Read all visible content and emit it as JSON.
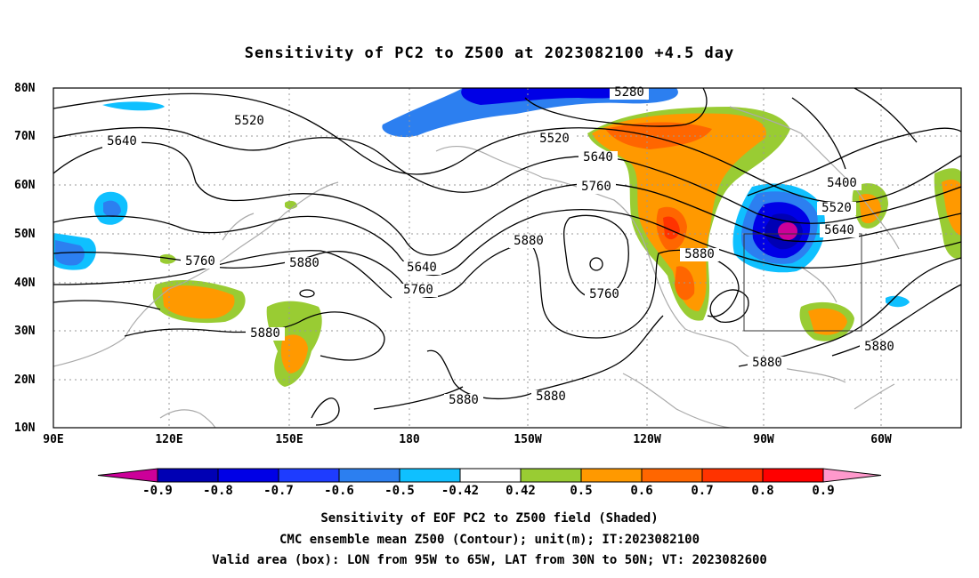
{
  "title": "Sensitivity of PC2 to Z500 at 2023082100 +4.5 day",
  "lat_labels": [
    "80N",
    "70N",
    "60N",
    "50N",
    "40N",
    "30N",
    "20N",
    "10N"
  ],
  "lon_labels": [
    "90E",
    "120E",
    "150E",
    "180",
    "150W",
    "120W",
    "90W",
    "60W"
  ],
  "colorbar": {
    "labels": [
      "-0.9",
      "-0.8",
      "-0.7",
      "-0.6",
      "-0.5",
      "-0.42",
      "0.42",
      "0.5",
      "0.6",
      "0.7",
      "0.8",
      "0.9"
    ],
    "colors": [
      "#cc0099",
      "#0000b4",
      "#0000e6",
      "#1e3cff",
      "#2c7ff0",
      "#0fc0ff",
      "#ffffff",
      "#99cc33",
      "#ff9900",
      "#ff6600",
      "#ff3300",
      "#ff0000",
      "#ff99cc"
    ]
  },
  "contour_labels": [
    "5280",
    "5520",
    "5520",
    "5640",
    "5640",
    "5760",
    "5760",
    "5880",
    "5880",
    "5640",
    "5760",
    "5400",
    "5520",
    "5640",
    "5880",
    "5760",
    "5880",
    "5880",
    "5880",
    "5880",
    "5880"
  ],
  "captions": {
    "line1": "Sensitivity of EOF PC2 to Z500 field (Shaded)",
    "line2": "CMC ensemble mean Z500 (Contour); unit(m); IT:2023082100",
    "line3": "Valid area (box): LON from 95W to 65W, LAT from 30N to 50N; VT: 2023082600"
  }
}
